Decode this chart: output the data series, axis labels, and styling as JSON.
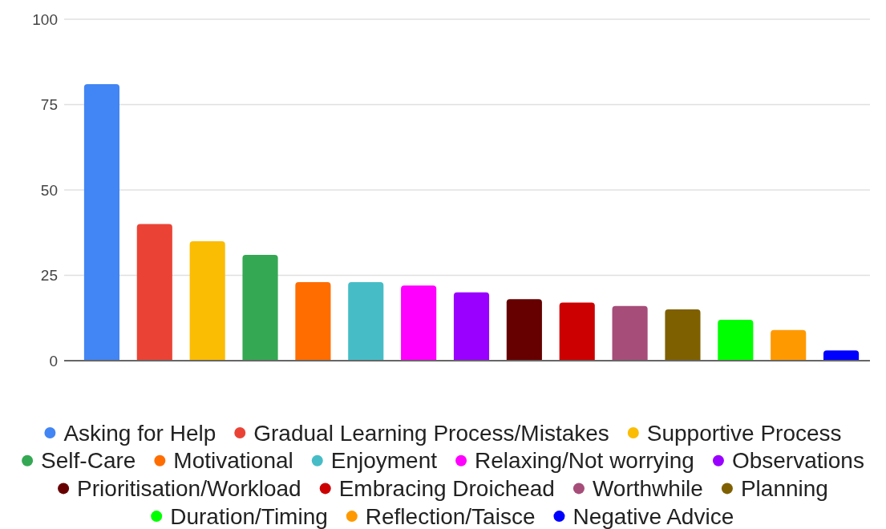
{
  "chart_data": {
    "type": "bar",
    "categories": [
      null,
      null,
      null,
      null,
      null,
      null,
      null,
      null,
      null,
      null,
      null,
      null,
      null,
      null,
      null
    ],
    "ylim": [
      0,
      100
    ],
    "yticks": [
      0,
      25,
      50,
      75,
      100
    ],
    "grid": "y",
    "legend": "bottom",
    "series": [
      {
        "name": "Asking for Help",
        "color": "#4285f4",
        "values": [
          81,
          null,
          null,
          null,
          null,
          null,
          null,
          null,
          null,
          null,
          null,
          null,
          null,
          null,
          null
        ]
      },
      {
        "name": "Gradual Learning Process/Mistakes",
        "color": "#ea4335",
        "values": [
          null,
          40,
          null,
          null,
          null,
          null,
          null,
          null,
          null,
          null,
          null,
          null,
          null,
          null,
          null
        ]
      },
      {
        "name": "Supportive Process",
        "color": "#fbbc04",
        "values": [
          null,
          null,
          35,
          null,
          null,
          null,
          null,
          null,
          null,
          null,
          null,
          null,
          null,
          null,
          null
        ]
      },
      {
        "name": "Self-Care",
        "color": "#34a853",
        "values": [
          null,
          null,
          null,
          31,
          null,
          null,
          null,
          null,
          null,
          null,
          null,
          null,
          null,
          null,
          null
        ]
      },
      {
        "name": "Motivational",
        "color": "#ff6d01",
        "values": [
          null,
          null,
          null,
          null,
          23,
          null,
          null,
          null,
          null,
          null,
          null,
          null,
          null,
          null,
          null
        ]
      },
      {
        "name": "Enjoyment",
        "color": "#46bdc6",
        "values": [
          null,
          null,
          null,
          null,
          null,
          23,
          null,
          null,
          null,
          null,
          null,
          null,
          null,
          null,
          null
        ]
      },
      {
        "name": "Relaxing/Not worrying",
        "color": "#ff00ff",
        "values": [
          null,
          null,
          null,
          null,
          null,
          null,
          22,
          null,
          null,
          null,
          null,
          null,
          null,
          null,
          null
        ]
      },
      {
        "name": "Observations",
        "color": "#9900ff",
        "values": [
          null,
          null,
          null,
          null,
          null,
          null,
          null,
          20,
          null,
          null,
          null,
          null,
          null,
          null,
          null
        ]
      },
      {
        "name": "Prioritisation/Workload",
        "color": "#660000",
        "values": [
          null,
          null,
          null,
          null,
          null,
          null,
          null,
          null,
          18,
          null,
          null,
          null,
          null,
          null,
          null
        ]
      },
      {
        "name": "Embracing Droichead",
        "color": "#cc0000",
        "values": [
          null,
          null,
          null,
          null,
          null,
          null,
          null,
          null,
          null,
          17,
          null,
          null,
          null,
          null,
          null
        ]
      },
      {
        "name": "Worthwhile",
        "color": "#a64d79",
        "values": [
          null,
          null,
          null,
          null,
          null,
          null,
          null,
          null,
          null,
          null,
          16,
          null,
          null,
          null,
          null
        ]
      },
      {
        "name": "Planning",
        "color": "#7f6000",
        "values": [
          null,
          null,
          null,
          null,
          null,
          null,
          null,
          null,
          null,
          null,
          null,
          15,
          null,
          null,
          null
        ]
      },
      {
        "name": "Duration/Timing",
        "color": "#00ff00",
        "values": [
          null,
          null,
          null,
          null,
          null,
          null,
          null,
          null,
          null,
          null,
          null,
          null,
          12,
          null,
          null
        ]
      },
      {
        "name": "Reflection/Taisce",
        "color": "#ff9900",
        "values": [
          null,
          null,
          null,
          null,
          null,
          null,
          null,
          null,
          null,
          null,
          null,
          null,
          null,
          9,
          null
        ]
      },
      {
        "name": "Negative Advice",
        "color": "#0000ff",
        "values": [
          null,
          null,
          null,
          null,
          null,
          null,
          null,
          null,
          null,
          null,
          null,
          null,
          null,
          null,
          3
        ]
      }
    ]
  }
}
